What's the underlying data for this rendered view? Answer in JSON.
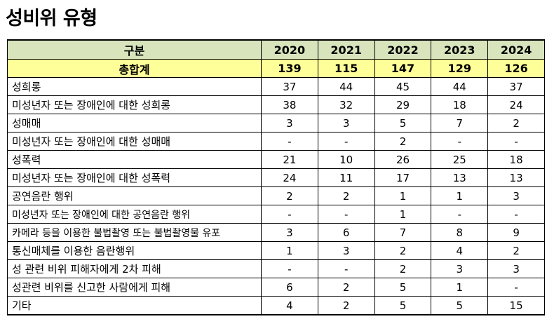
{
  "title": "성비위 유형",
  "table": {
    "header_label": "구분",
    "years": [
      "2020",
      "2021",
      "2022",
      "2023",
      "2024"
    ],
    "total": {
      "label": "총합계",
      "values": [
        "139",
        "115",
        "147",
        "129",
        "126"
      ]
    },
    "rows": [
      {
        "label": "성희롱",
        "values": [
          "37",
          "44",
          "45",
          "44",
          "37"
        ]
      },
      {
        "label": "미성년자 또는 장애인에 대한 성희롱",
        "values": [
          "38",
          "32",
          "29",
          "18",
          "24"
        ]
      },
      {
        "label": "성매매",
        "values": [
          "3",
          "3",
          "5",
          "7",
          "2"
        ]
      },
      {
        "label": "미성년자 또는 장애인에 대한 성매매",
        "values": [
          "-",
          "-",
          "2",
          "-",
          "-"
        ]
      },
      {
        "label": "성폭력",
        "values": [
          "21",
          "10",
          "26",
          "25",
          "18"
        ]
      },
      {
        "label": "미성년자 또는 장애인에 대한 성폭력",
        "values": [
          "24",
          "11",
          "17",
          "13",
          "13"
        ]
      },
      {
        "label": "공연음란 행위",
        "values": [
          "2",
          "2",
          "1",
          "1",
          "3"
        ]
      },
      {
        "label": "미성년자 또는 장애인에 대한 공연음란 행위",
        "values": [
          "-",
          "-",
          "1",
          "-",
          "-"
        ]
      },
      {
        "label": "카메라 등을 이용한 불법촬영 또는 불법촬영물 유포",
        "values": [
          "3",
          "6",
          "7",
          "8",
          "9"
        ]
      },
      {
        "label": "통신매체를 이용한 음란행위",
        "values": [
          "1",
          "3",
          "2",
          "4",
          "2"
        ]
      },
      {
        "label": "성 관련 비위 피해자에게 2차 피해",
        "values": [
          "-",
          "-",
          "2",
          "3",
          "3"
        ]
      },
      {
        "label": "성관련 비위를 신고한 사람에게 피해",
        "values": [
          "6",
          "2",
          "5",
          "1",
          "-"
        ]
      },
      {
        "label": "기타",
        "values": [
          "4",
          "2",
          "5",
          "5",
          "15"
        ]
      }
    ]
  }
}
